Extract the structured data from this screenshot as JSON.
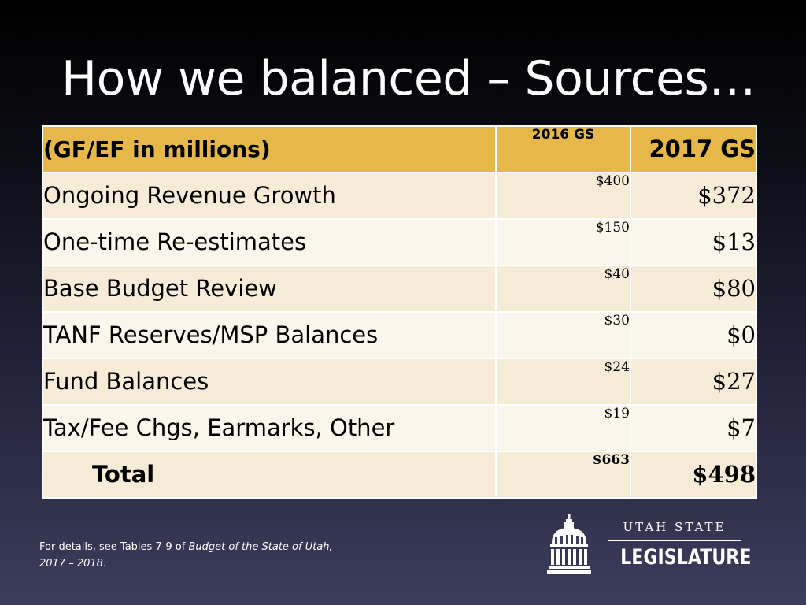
{
  "slide": {
    "title": "How we balanced – Sources…"
  },
  "table": {
    "header": {
      "label": "(GF/EF in millions)",
      "col_2016": "2016 GS",
      "col_2017": "2017 GS"
    },
    "rows": [
      {
        "label": "Ongoing Revenue Growth",
        "gs2016": "$400",
        "gs2017": "$372"
      },
      {
        "label": "One-time Re-estimates",
        "gs2016": "$150",
        "gs2017": "$13"
      },
      {
        "label": "Base Budget Review",
        "gs2016": "$40",
        "gs2017": "$80"
      },
      {
        "label": "TANF Reserves/MSP Balances",
        "gs2016": "$30",
        "gs2017": "$0"
      },
      {
        "label": "Fund Balances",
        "gs2016": "$24",
        "gs2017": "$27"
      },
      {
        "label": "Tax/Fee Chgs, Earmarks, Other",
        "gs2016": "$19",
        "gs2017": "$7"
      }
    ],
    "total": {
      "label": "Total",
      "gs2016": "$663",
      "gs2017": "$498"
    }
  },
  "footnote": {
    "prefix": "For details, see Tables 7-9 of ",
    "source": "Budget of the State of Utah, 2017 – 2018",
    "suffix": "."
  },
  "logo": {
    "top_text": "UTAH STATE",
    "main_text": "LEGISLATURE",
    "icon": "capitol-dome-icon"
  },
  "colors": {
    "header_bg": "#e6b84a",
    "row_dark": "#f6ebd6",
    "row_light": "#fbf6ec"
  }
}
